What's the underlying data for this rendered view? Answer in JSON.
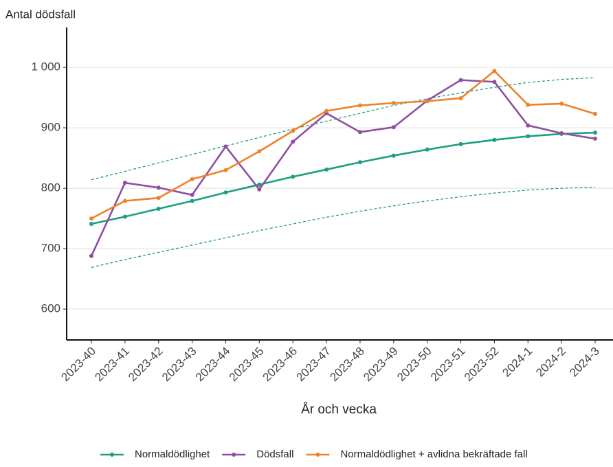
{
  "chart_data": {
    "type": "line",
    "ylabel": "Antal dödsfall",
    "xlabel": "År och vecka",
    "categories": [
      "2023-40",
      "2023-41",
      "2023-42",
      "2023-43",
      "2023-44",
      "2023-45",
      "2023-46",
      "2023-47",
      "2023-48",
      "2023-49",
      "2023-50",
      "2023-51",
      "2023-52",
      "2024-1",
      "2024-2",
      "2024-3"
    ],
    "series": [
      {
        "name": "Normaldödlighet",
        "color": "#1b9e82",
        "values": [
          741,
          753,
          766,
          779,
          793,
          806,
          819,
          831,
          843,
          854,
          864,
          873,
          880,
          886,
          890,
          892
        ]
      },
      {
        "name": "Dödsfall",
        "color": "#8e4fa0",
        "values": [
          688,
          809,
          801,
          789,
          869,
          798,
          877,
          924,
          893,
          901,
          945,
          979,
          976,
          904,
          891,
          882
        ]
      },
      {
        "name": "Normaldödlighet + avlidna bekräftade fall",
        "color": "#ef8128",
        "values": [
          750,
          779,
          784,
          815,
          830,
          861,
          895,
          928,
          937,
          941,
          944,
          949,
          994,
          938,
          940,
          923
        ]
      }
    ],
    "bands": [
      {
        "color": "#1b9e82",
        "dashed": true,
        "values": [
          814,
          828,
          842,
          856,
          870,
          884,
          898,
          911,
          924,
          937,
          948,
          958,
          967,
          975,
          980,
          983
        ]
      },
      {
        "color": "#1b9e82",
        "dashed": true,
        "values": [
          669,
          682,
          694,
          706,
          718,
          730,
          741,
          752,
          762,
          771,
          779,
          786,
          792,
          797,
          800,
          802
        ]
      }
    ],
    "ylim": [
      549,
      1066
    ],
    "yticks": [
      600,
      700,
      800,
      900,
      {
        "value": 1000,
        "label": "1 000"
      }
    ],
    "grid": true,
    "legend": "bottom"
  }
}
